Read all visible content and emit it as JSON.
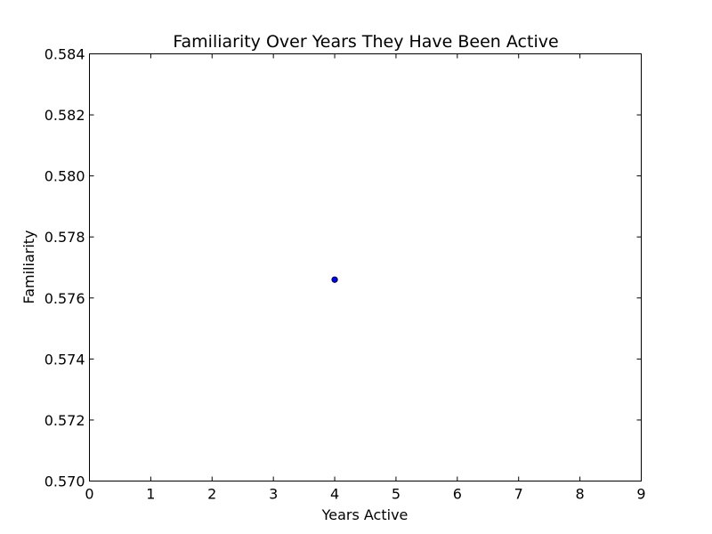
{
  "chart_data": {
    "type": "scatter",
    "title": "Familiarity Over Years They Have Been Active",
    "xlabel": "Years Active",
    "ylabel": "Familiarity",
    "xlim": [
      0,
      9
    ],
    "ylim": [
      0.57,
      0.584
    ],
    "x_ticks": [
      "0",
      "1",
      "2",
      "3",
      "4",
      "5",
      "6",
      "7",
      "8",
      "9"
    ],
    "y_ticks": [
      "0.570",
      "0.572",
      "0.574",
      "0.576",
      "0.578",
      "0.580",
      "0.582",
      "0.584"
    ],
    "grid": false,
    "series": [
      {
        "points": [
          {
            "x": 4,
            "y": 0.5766
          }
        ],
        "color": "#0000ff"
      }
    ]
  }
}
